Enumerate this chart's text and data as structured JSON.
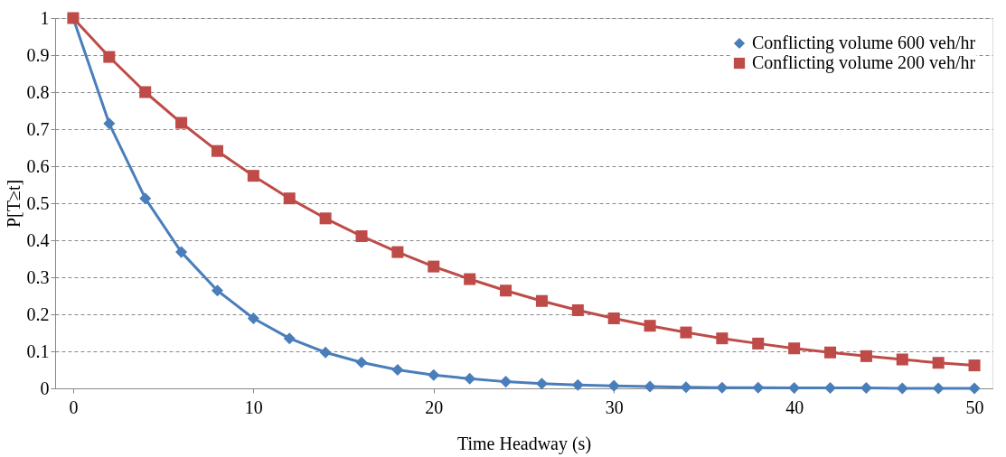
{
  "chart_data": {
    "type": "line",
    "xlabel": "Time Headway (s)",
    "ylabel": "P[T≥t]",
    "x": [
      0,
      2,
      4,
      6,
      8,
      10,
      12,
      14,
      16,
      18,
      20,
      22,
      24,
      26,
      28,
      30,
      32,
      34,
      36,
      38,
      40,
      42,
      44,
      46,
      48,
      50
    ],
    "series": [
      {
        "name": "Conflicting volume 600 veh/hr",
        "color": "#4a7ebb",
        "marker": "diamond",
        "values": [
          1,
          0.715,
          0.513,
          0.368,
          0.264,
          0.189,
          0.135,
          0.097,
          0.07,
          0.05,
          0.036,
          0.026,
          0.018,
          0.013,
          0.009,
          0.007,
          0.005,
          0.003,
          0.002,
          0.002,
          0.001,
          0.001,
          0.001,
          0,
          0,
          0
        ]
      },
      {
        "name": "Conflicting volume 200 veh/hr",
        "color": "#be4b48",
        "marker": "square",
        "values": [
          1,
          0.895,
          0.8,
          0.717,
          0.641,
          0.574,
          0.513,
          0.459,
          0.411,
          0.368,
          0.329,
          0.295,
          0.264,
          0.236,
          0.211,
          0.189,
          0.169,
          0.151,
          0.135,
          0.121,
          0.108,
          0.097,
          0.087,
          0.078,
          0.069,
          0.062
        ]
      }
    ],
    "xlim": [
      -1,
      51
    ],
    "xticks": [
      0,
      10,
      20,
      30,
      40,
      50
    ],
    "ylim": [
      0,
      1
    ],
    "yticks": [
      0,
      0.1,
      0.2,
      0.3,
      0.4,
      0.5,
      0.6,
      0.7,
      0.8,
      0.9,
      1
    ],
    "grid": "y",
    "legend": "top right",
    "line_style": "solid"
  }
}
